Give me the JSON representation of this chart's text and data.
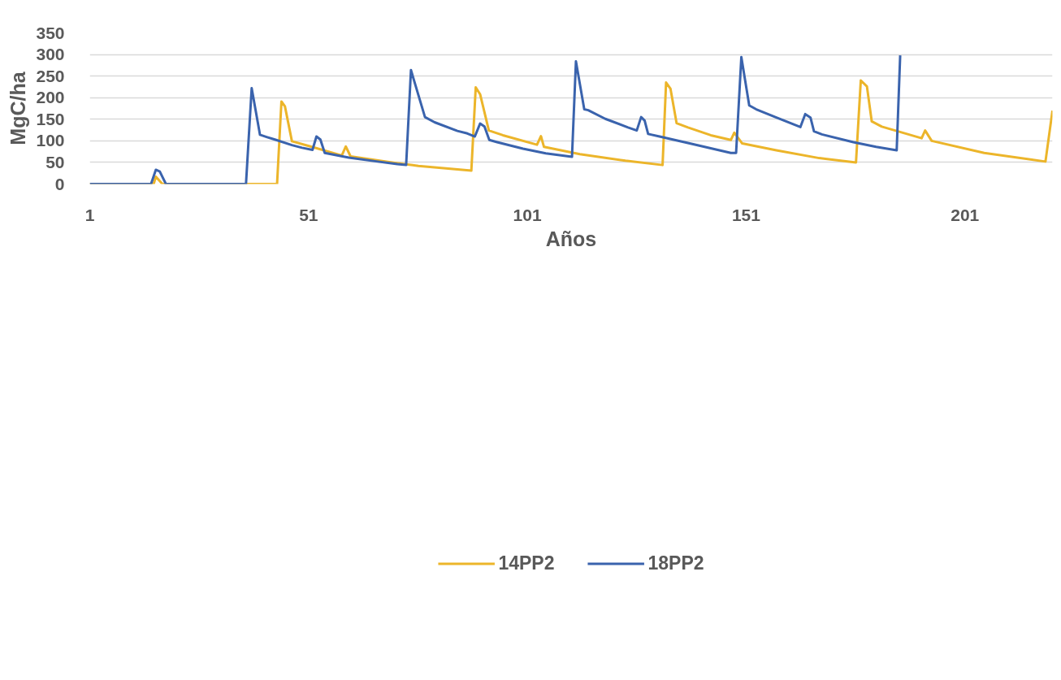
{
  "chart_data": {
    "type": "line",
    "xlabel": "Años",
    "ylabel": "MgC/ha",
    "xlim": [
      1,
      221
    ],
    "xticks": [
      1,
      51,
      101,
      151,
      201
    ],
    "ylim": [
      0,
      350
    ],
    "yticks": [
      0,
      50,
      100,
      150,
      200,
      250,
      300,
      350
    ],
    "grid": "y",
    "legend": "bottom",
    "marker": "none",
    "line_style": "solid",
    "series": [
      {
        "name": "14PP2",
        "color": "#ecb52a",
        "x": [
          1,
          15.6,
          16.1,
          17.6,
          43.8,
          44.8,
          45.6,
          47.2,
          51.1,
          58.6,
          59.5,
          60.6,
          70.7,
          76.1,
          88.2,
          89.2,
          90.2,
          92.2,
          95.4,
          103.2,
          104.1,
          104.8,
          113,
          123.4,
          131.9,
          132.7,
          133.7,
          135.1,
          137.7,
          142.9,
          147.5,
          148.3,
          150.1,
          157.9,
          167.7,
          176.1,
          177.2,
          178.6,
          179.7,
          182,
          191.1,
          191.9,
          193.4,
          205.4,
          219.4,
          221
        ],
        "values": [
          0,
          0,
          17,
          0,
          0,
          191,
          180,
          99,
          88,
          66,
          87,
          64,
          49,
          42,
          31,
          224,
          208,
          124,
          113,
          91,
          111,
          86,
          69,
          54,
          44,
          235,
          221,
          141,
          131,
          113,
          102,
          119,
          94,
          78,
          60,
          50,
          240,
          226,
          145,
          133,
          106,
          124,
          100,
          72,
          52,
          170
        ]
      },
      {
        "name": "18PP2",
        "color": "#3a63ad",
        "x": [
          1,
          15.0,
          16.1,
          17,
          18.4,
          36.7,
          38,
          39.9,
          41.4,
          43.3,
          47.2,
          49.5,
          51.9,
          52.8,
          53.7,
          54.7,
          60.2,
          66.8,
          71.3,
          73.3,
          74.4,
          77.6,
          79.8,
          85,
          87.3,
          89,
          90.2,
          91.2,
          92.3,
          94.1,
          100,
          105.2,
          111.2,
          112.1,
          114,
          114.9,
          118.8,
          124,
          126,
          127,
          127.8,
          128.6,
          131.2,
          137.7,
          147.5,
          148.7,
          149.9,
          151.7,
          153.3,
          157.9,
          163.4,
          164.5,
          165.7,
          166.5,
          168.3,
          175.5,
          180.7,
          185.4,
          186.2
        ],
        "values": [
          0,
          0,
          33,
          29,
          0,
          0,
          222,
          114,
          109,
          103,
          90,
          84,
          79,
          110,
          103,
          72,
          61,
          52,
          46,
          44,
          264,
          155,
          143,
          123,
          117,
          110,
          140,
          133,
          102,
          97,
          82,
          71,
          63,
          284,
          173,
          171,
          151,
          131,
          124,
          155,
          147,
          116,
          110,
          95,
          72,
          72,
          294,
          182,
          173,
          154,
          132,
          162,
          154,
          122,
          115,
          97,
          86,
          78,
          298
        ]
      }
    ]
  }
}
